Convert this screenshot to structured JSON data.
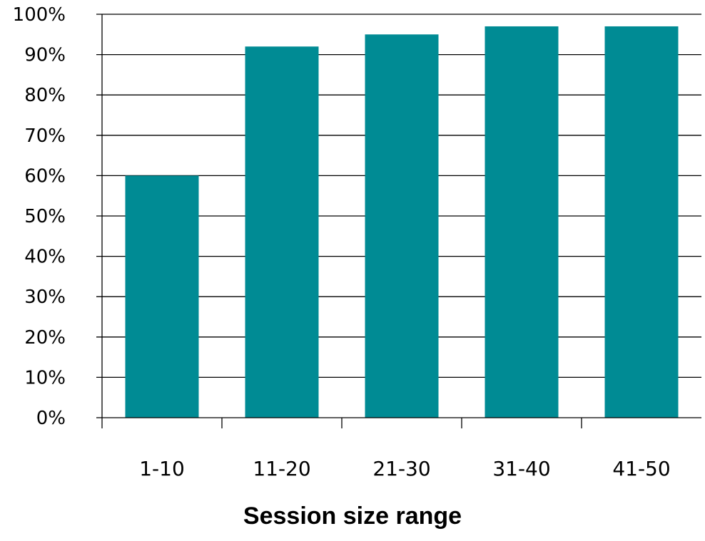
{
  "chart_data": {
    "type": "bar",
    "title": "",
    "xlabel": "Session size range",
    "ylabel": "",
    "categories": [
      "1-10",
      "11-20",
      "21-30",
      "31-40",
      "41-50"
    ],
    "values": [
      60,
      92,
      95,
      97,
      97
    ],
    "ylim": [
      0,
      100
    ],
    "y_ticks": [
      "0%",
      "10%",
      "20%",
      "30%",
      "40%",
      "50%",
      "60%",
      "70%",
      "80%",
      "90%",
      "100%"
    ],
    "grid": "horizontal",
    "legend": "none",
    "colors": {
      "bar": "#008b94",
      "axis": "#000000",
      "grid": "#000000"
    }
  }
}
